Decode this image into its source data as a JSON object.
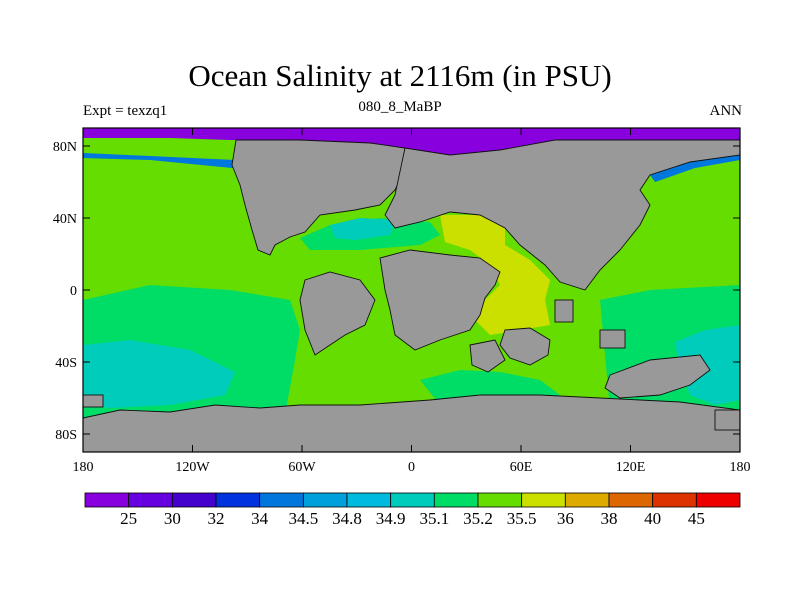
{
  "title": "Ocean Salinity at 2116m (in PSU)",
  "left_label": "Expt = texzq1",
  "center_label": "080_8_MaBP",
  "right_label": "ANN",
  "map": {
    "lon_range": [
      -180,
      180
    ],
    "lat_range": [
      -90,
      90
    ],
    "x_ticks": [
      {
        "lon": -180,
        "label": "180"
      },
      {
        "lon": -120,
        "label": "120W"
      },
      {
        "lon": -60,
        "label": "60W"
      },
      {
        "lon": 0,
        "label": "0"
      },
      {
        "lon": 60,
        "label": "60E"
      },
      {
        "lon": 120,
        "label": "120E"
      },
      {
        "lon": 180,
        "label": "180"
      }
    ],
    "y_ticks": [
      {
        "lat": 80,
        "label": "80N"
      },
      {
        "lat": 40,
        "label": "40N"
      },
      {
        "lat": 0,
        "label": "0"
      },
      {
        "lat": -40,
        "label": "40S"
      },
      {
        "lat": -80,
        "label": "80S"
      }
    ],
    "colors": {
      "land": "#999999",
      "ocean_35_2": "#66dd00",
      "ocean_35_1": "#00dd66",
      "ocean_34_9": "#00ccbb",
      "ocean_35_5": "#cce000",
      "ocean_25": "#8800dd"
    }
  },
  "colorbar": {
    "colors": [
      "#8800dd",
      "#6600e0",
      "#4400cc",
      "#0033dd",
      "#0077dd",
      "#00a0dd",
      "#00bbdd",
      "#00ccbb",
      "#00dd66",
      "#66dd00",
      "#cce000",
      "#ddaa00",
      "#dd6600",
      "#dd3300",
      "#ee0000"
    ],
    "labels": [
      "25",
      "30",
      "32",
      "34",
      "34.5",
      "34.8",
      "34.9",
      "35.1",
      "35.2",
      "35.5",
      "36",
      "38",
      "40",
      "45"
    ]
  }
}
